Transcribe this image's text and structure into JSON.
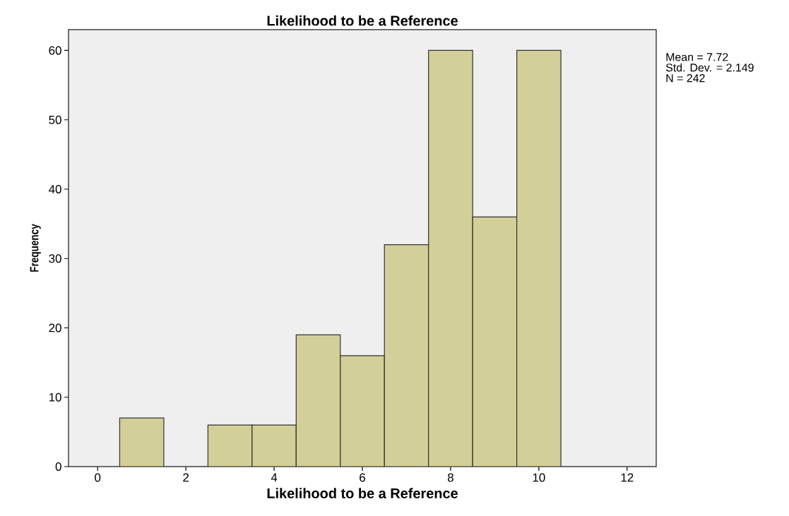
{
  "chart_data": {
    "type": "histogram",
    "title": "Likelihood to be a Reference",
    "xlabel": "Likelihood to be a Reference",
    "ylabel": "Frequency",
    "bins": [
      0.5,
      1.5,
      2.5,
      3.5,
      4.5,
      5.5,
      6.5,
      7.5,
      8.5,
      9.5,
      10.5
    ],
    "values": [
      7,
      0,
      6,
      6,
      19,
      16,
      32,
      60,
      36,
      60
    ],
    "color": "#d3cf98",
    "xlim": [
      -0.66,
      12.66
    ],
    "ylim": [
      0,
      63
    ],
    "xticks": [
      0,
      2,
      4,
      6,
      8,
      10,
      12
    ],
    "yticks": [
      0,
      10,
      20,
      30,
      40,
      50,
      60
    ],
    "annotations": [
      "Mean = 7.72",
      "Std. Dev. = 2.149",
      "N = 242"
    ]
  }
}
